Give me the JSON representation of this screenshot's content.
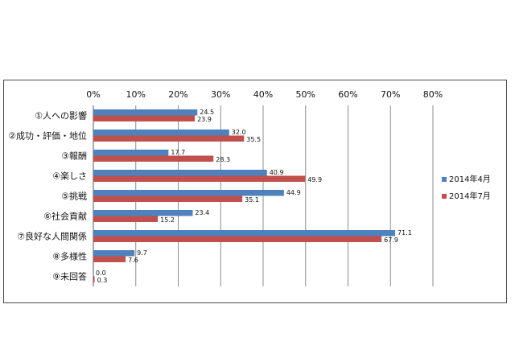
{
  "chart_data": {
    "type": "bar",
    "orientation": "horizontal",
    "categories": [
      "①人への影響",
      "②成功・評価・地位",
      "③報酬",
      "④楽しさ",
      "⑤挑戦",
      "⑥社会貢献",
      "⑦良好な人間関係",
      "⑧多様性",
      "⑨未回答"
    ],
    "series": [
      {
        "name": "2014年4月",
        "values": [
          24.5,
          32.0,
          17.7,
          40.9,
          44.9,
          23.4,
          71.1,
          9.7,
          0.0
        ],
        "color": "#4f81bd"
      },
      {
        "name": "2014年7月",
        "values": [
          23.9,
          35.5,
          28.3,
          49.9,
          35.1,
          15.2,
          67.9,
          7.6,
          0.3
        ],
        "color": "#c0504d"
      }
    ],
    "value_labels": [
      [
        "24.5",
        "32.0",
        "17.7",
        "40.9",
        "44.9",
        "23.4",
        "71.1",
        "9.7",
        "0.0"
      ],
      [
        "23.9",
        "35.5",
        "28.3",
        "49.9",
        "35.1",
        "15.2",
        "67.9",
        "7.6",
        "0.3"
      ]
    ],
    "xlim": [
      0,
      80
    ],
    "xticks": [
      "0%",
      "10%",
      "20%",
      "30%",
      "40%",
      "50%",
      "60%",
      "70%",
      "80%"
    ],
    "x_axis_position": "top",
    "grid": true,
    "legend_position": "right"
  }
}
